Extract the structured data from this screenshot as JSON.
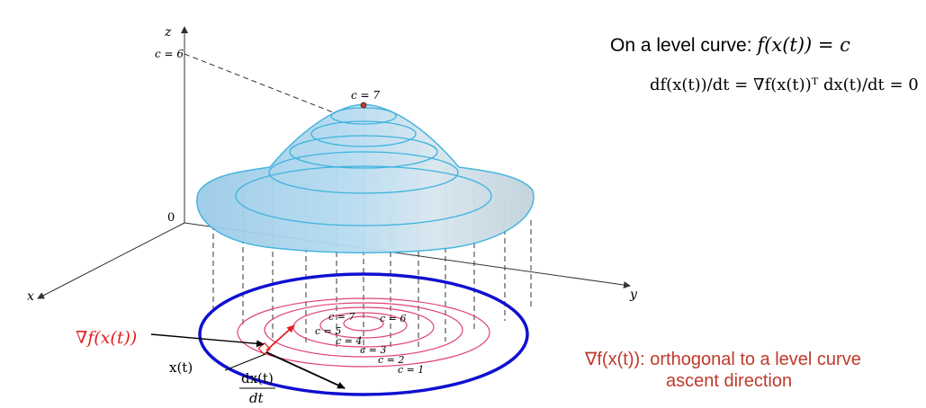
{
  "axes": {
    "x_label": "x",
    "y_label": "y",
    "z_label": "z",
    "origin_label": "0",
    "c6_axis_label": "c = 6"
  },
  "peak_label": "c = 7",
  "contour_labels": [
    "c = 7",
    "c = 6",
    "c = 5",
    "c = 4",
    "c = 3",
    "c = 2",
    "c = 1"
  ],
  "gradient_label": "∇f(x(t))",
  "position_label": "x(t)",
  "tangent_label": {
    "numerator": "dx(t)",
    "denominator": "dt"
  },
  "level_curve_text": {
    "prefix": "On a level curve: ",
    "equation": "f(x(t)) = c"
  },
  "derivative_equation": "df(x(t))/dt = ∇f(x(t))ᵀ dx(t)/dt = 0",
  "orthogonal_note": {
    "line1": "∇f(x(t)): orthogonal to a level curve",
    "line2": "ascent direction"
  },
  "colors": {
    "surface": "#a9d3ec",
    "surface_edge": "#3fb2de",
    "contours": "#e0407a",
    "outer_curve": "#1010d0",
    "gradient_text": "#e02020",
    "note_text": "#c0392b"
  }
}
